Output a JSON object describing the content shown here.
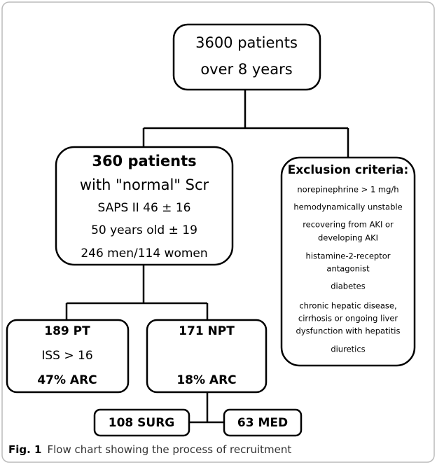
{
  "nodes": [
    {
      "lines": [
        "3600  patients",
        "over 8  years"
      ]
    },
    {
      "lines": [
        "360 patients",
        "with \"normal\" Scr",
        "SAPS II 46 ± 16",
        "50 years old ± 19",
        "246 men/114 women"
      ]
    },
    {
      "lines": [
        "Exclusion criteria:",
        "norepinephrine > 1 mg/h",
        "hemodynamically unstable",
        "recovering from AKI or",
        "developing AKI",
        "histamine-2-receptor",
        "antagonist",
        "diabetes",
        "chronic hepatic disease,",
        "cirrhosis or ongoing liver",
        "dysfunction with hepatitis",
        "diuretics"
      ]
    },
    {
      "lines": [
        "189 PT",
        "ISS > 16",
        "47% ARC"
      ]
    },
    {
      "lines": [
        "171 NPT",
        "18% ARC"
      ]
    },
    {
      "lines": [
        "108 SURG"
      ]
    },
    {
      "lines": [
        "63 MED"
      ]
    }
  ],
  "caption": {
    "label": "Fig. 1",
    "text": "Flow chart showing the process of recruitment"
  }
}
